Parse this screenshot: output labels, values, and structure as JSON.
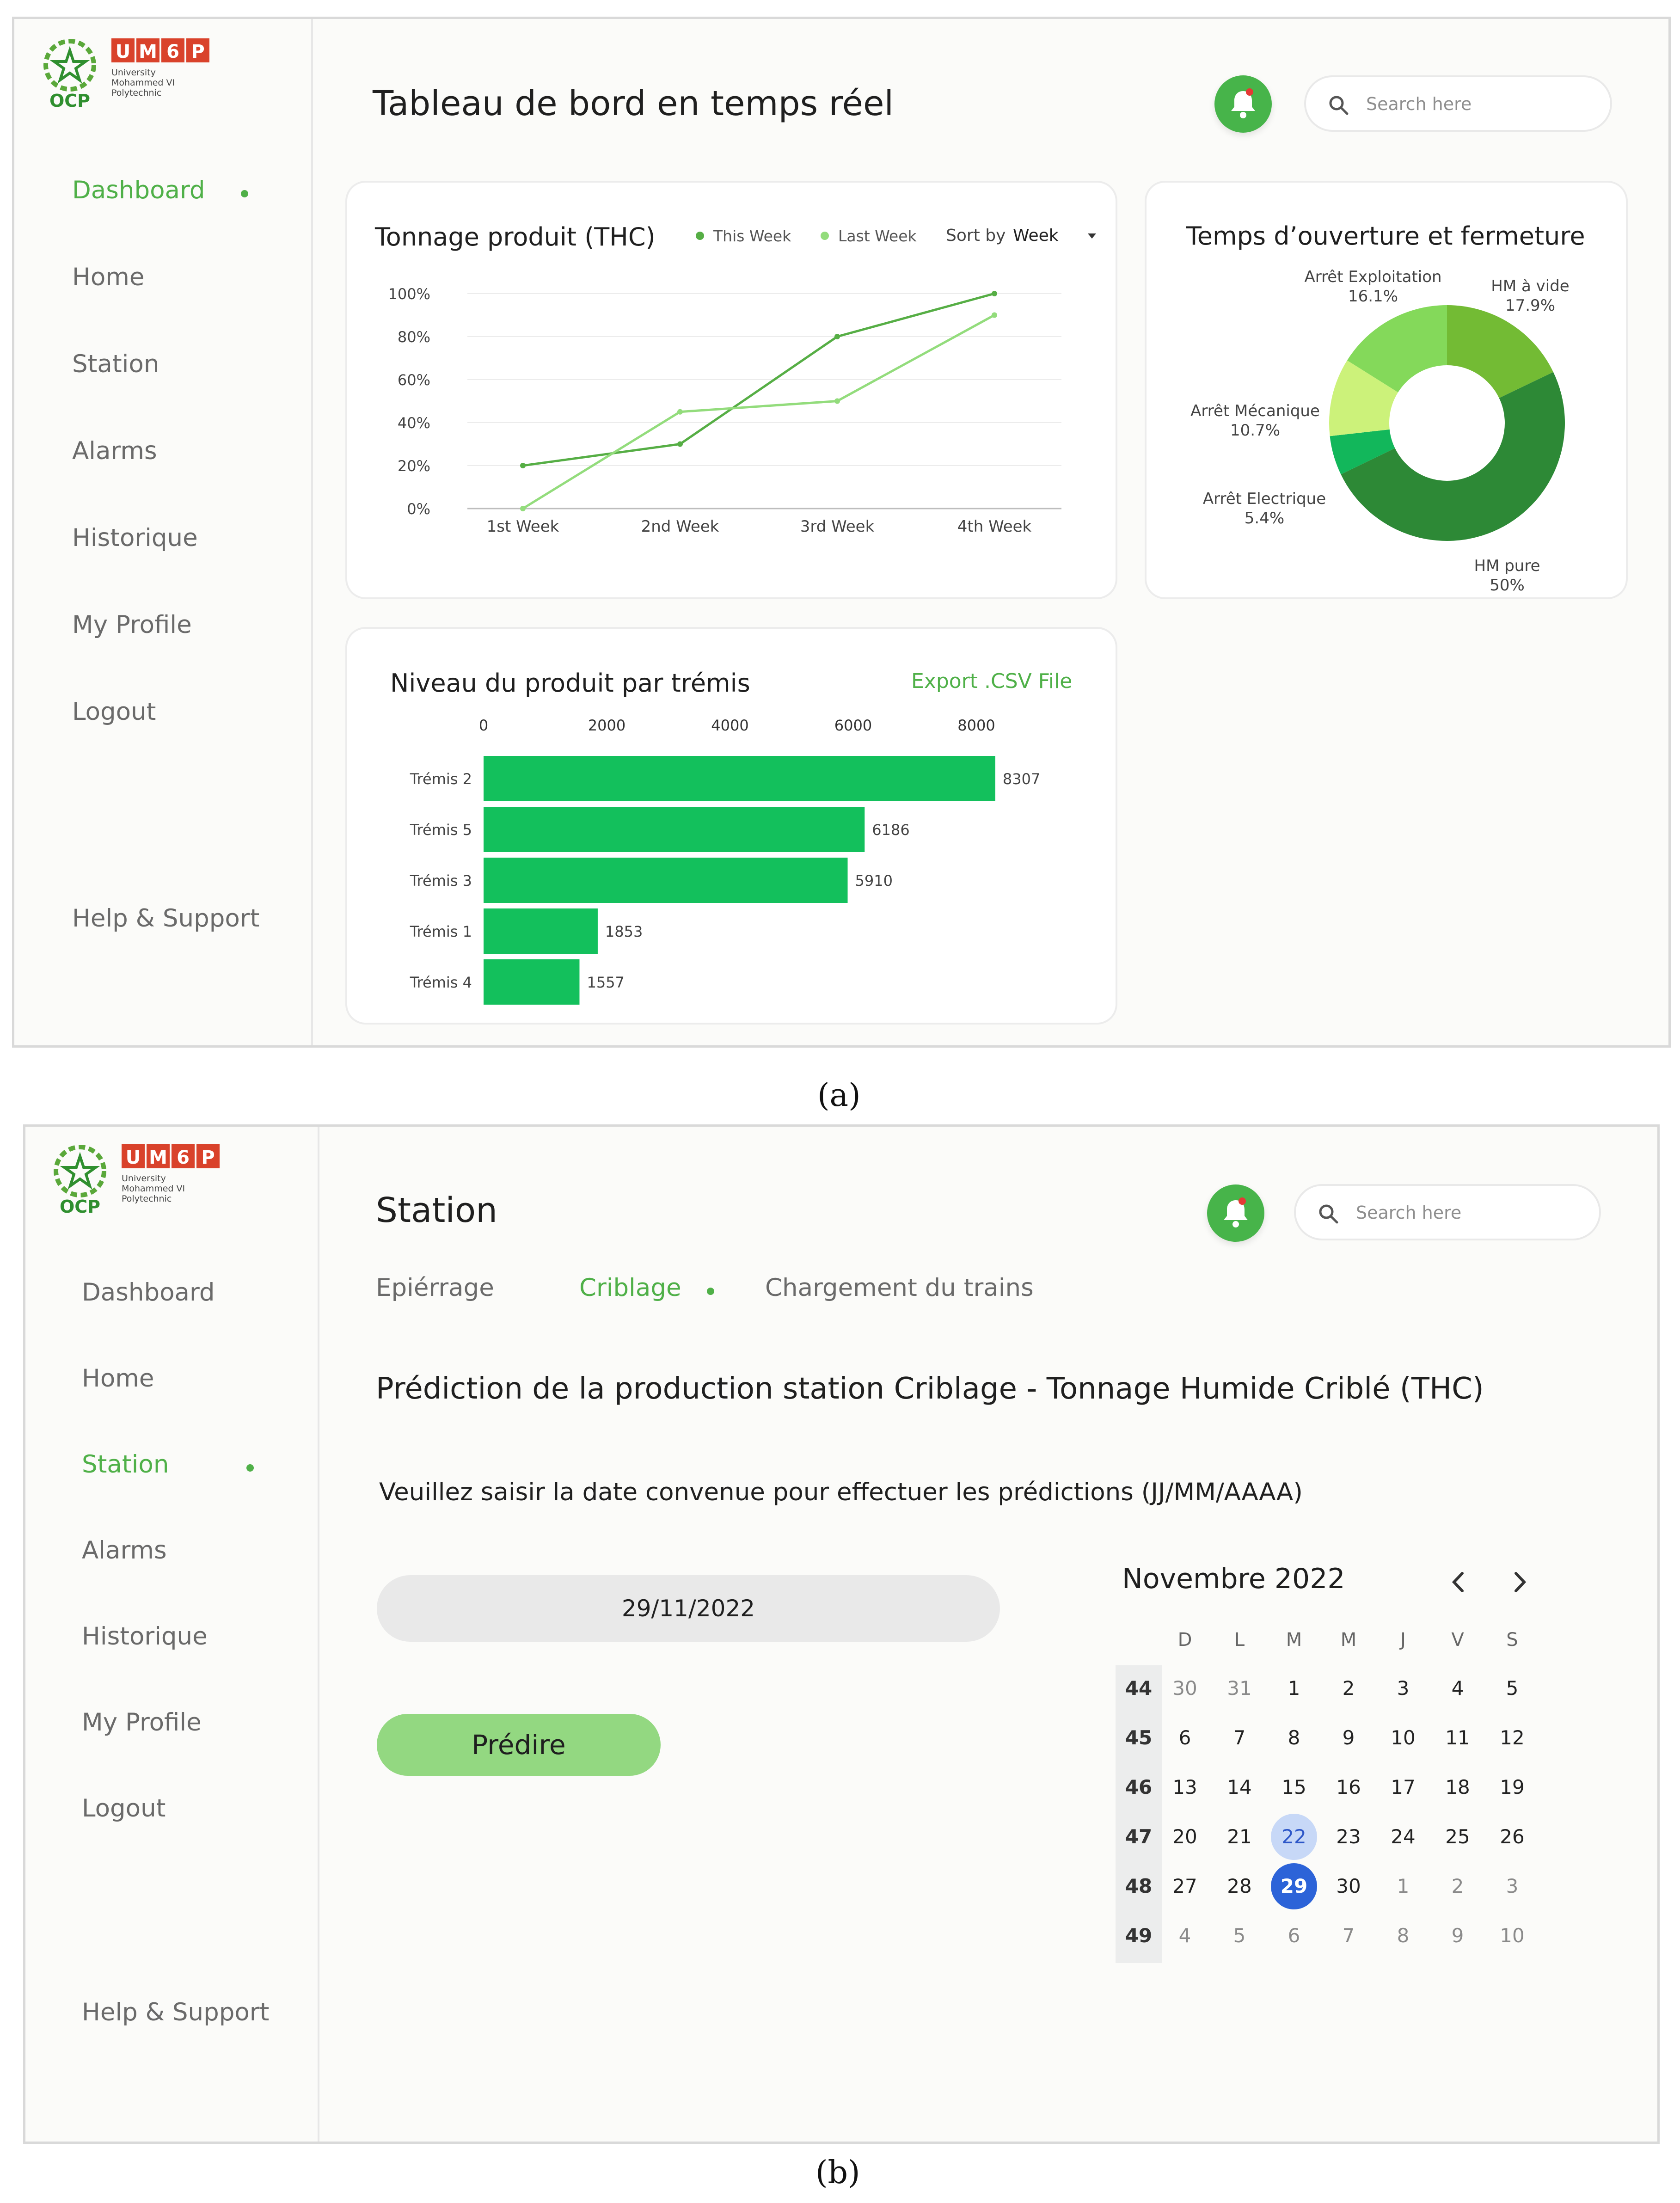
{
  "logo": {
    "ocp": "OCP",
    "um6p_letters": [
      "U",
      "M",
      "6",
      "P"
    ],
    "university_line1": "University",
    "university_line2": "Mohammed VI",
    "university_line3": "Polytechnic"
  },
  "nav": [
    "Dashboard",
    "Home",
    "Station",
    "Alarms",
    "Historique",
    "My Profile",
    "Logout"
  ],
  "help": "Help & Support",
  "search_placeholder": "Search here",
  "colors": {
    "accent": "#4fb048",
    "bell": "#47b44a",
    "bar": "#13c05c",
    "line_this_week": "#56ae45",
    "line_last_week": "#93dc7c",
    "predict_button": "#93d881",
    "calendar_selected": "#2c63d8",
    "calendar_today": "#c7d8f7"
  },
  "icons": [
    "bell-icon",
    "search-icon",
    "chevron-left-icon",
    "chevron-right-icon",
    "nav-dot-indicator"
  ],
  "dashboard": {
    "title": "Tableau de bord en temps réel",
    "active_nav": "Dashboard",
    "line_chart": {
      "title": "Tonnage produit (THC)",
      "legend_this_week": "This Week",
      "legend_last_week": "Last Week",
      "sort_by_label": "Sort by",
      "sort_by_value": "Week"
    },
    "donut_chart": {
      "title": "Temps d’ouverture et fermeture"
    },
    "bar_chart": {
      "title": "Niveau du produit par trémis",
      "export_label": "Export .CSV File"
    }
  },
  "chart_data": [
    {
      "type": "line",
      "title": "Tonnage produit (THC)",
      "x": [
        "1st Week",
        "2nd Week",
        "3rd Week",
        "4th Week"
      ],
      "y_ticks": [
        "0%",
        "20%",
        "40%",
        "60%",
        "80%",
        "100%"
      ],
      "ylim": [
        0,
        100
      ],
      "grid": true,
      "legend_placement": "top-right",
      "series": [
        {
          "name": "This Week",
          "values": [
            20,
            30,
            80,
            100
          ]
        },
        {
          "name": "Last Week",
          "values": [
            0,
            45,
            50,
            90
          ]
        }
      ]
    },
    {
      "type": "pie",
      "title": "Temps d’ouverture et fermeture",
      "donut": true,
      "slices": [
        {
          "label": "HM à vide",
          "value": 17.9,
          "display": "17.9%",
          "color": "#73bb34"
        },
        {
          "label": "HM pure",
          "value": 50,
          "display": "50%",
          "color": "#2d8936"
        },
        {
          "label": "Arrêt Electrique",
          "value": 5.4,
          "display": "5.4%",
          "color": "#12b75b"
        },
        {
          "label": "Arrêt Mécanique",
          "value": 10.7,
          "display": "10.7%",
          "color": "#ccf27a"
        },
        {
          "label": "Arrêt Exploitation",
          "value": 16.1,
          "display": "16.1%",
          "color": "#84d95a"
        }
      ]
    },
    {
      "type": "bar",
      "orientation": "horizontal",
      "title": "Niveau du produit par trémis",
      "categories": [
        "Trémis 2",
        "Trémis 5",
        "Trémis 3",
        "Trémis 1",
        "Trémis 4"
      ],
      "values": [
        8307,
        6186,
        5910,
        1853,
        1557
      ],
      "x_ticks": [
        "0",
        "2000",
        "4000",
        "6000",
        "8000"
      ],
      "xlim": [
        0,
        8300
      ]
    }
  ],
  "station": {
    "title": "Station",
    "active_nav": "Station",
    "tabs": [
      "Epiérrage",
      "Criblage",
      "Chargement du trains"
    ],
    "active_tab": "Criblage",
    "heading": "Prédiction de la production station Criblage - Tonnage Humide Criblé (THC)",
    "instruction": "Veuillez saisir la date convenue pour effectuer les prédictions (JJ/MM/AAAA)",
    "date_value": "29/11/2022",
    "predict_label": "Prédire",
    "calendar": {
      "month_label": "Novembre 2022",
      "days_of_week": [
        "D",
        "L",
        "M",
        "M",
        "J",
        "V",
        "S"
      ],
      "weeks": [
        {
          "num": "44",
          "days": [
            "30",
            "31",
            "1",
            "2",
            "3",
            "4",
            "5"
          ]
        },
        {
          "num": "45",
          "days": [
            "6",
            "7",
            "8",
            "9",
            "10",
            "11",
            "12"
          ]
        },
        {
          "num": "46",
          "days": [
            "13",
            "14",
            "15",
            "16",
            "17",
            "18",
            "19"
          ]
        },
        {
          "num": "47",
          "days": [
            "20",
            "21",
            "22",
            "23",
            "24",
            "25",
            "26"
          ]
        },
        {
          "num": "48",
          "days": [
            "27",
            "28",
            "29",
            "30",
            "1",
            "2",
            "3"
          ]
        },
        {
          "num": "49",
          "days": [
            "4",
            "5",
            "6",
            "7",
            "8",
            "9",
            "10"
          ]
        }
      ],
      "today": "22",
      "selected": "29"
    }
  },
  "captions": {
    "a": "(a)",
    "b": "(b)"
  }
}
